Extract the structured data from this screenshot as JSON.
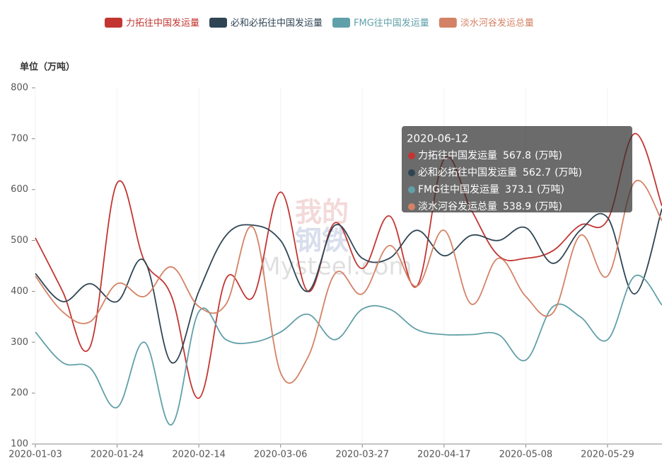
{
  "chart_data": {
    "type": "line",
    "y_label": "单位（万吨）",
    "tooltip_unit": "(万吨)",
    "tooltip_index": 23,
    "watermark": [
      "我的",
      "钢铁",
      "Mysteel.com"
    ],
    "categories": [
      "2020-01-03",
      null,
      null,
      "2020-01-24",
      null,
      null,
      "2020-02-14",
      null,
      null,
      "2020-03-06",
      null,
      null,
      "2020-03-27",
      null,
      null,
      "2020-04-17",
      null,
      null,
      "2020-05-08",
      null,
      null,
      "2020-05-29",
      null,
      "2020-06-12"
    ],
    "ylim": [
      100,
      800
    ],
    "yticks": [
      100,
      200,
      300,
      400,
      500,
      600,
      700,
      800
    ],
    "series": [
      {
        "name": "力拓往中国发运量",
        "color": "#c23531",
        "values": [
          505,
          400,
          290,
          613,
          460,
          390,
          190,
          425,
          390,
          595,
          400,
          535,
          445,
          548,
          410,
          660,
          560,
          470,
          465,
          480,
          530,
          540,
          710,
          567.8
        ]
      },
      {
        "name": "必和必拓往中国发运量",
        "color": "#2f4554",
        "values": [
          435,
          380,
          415,
          380,
          460,
          260,
          400,
          510,
          530,
          500,
          400,
          530,
          465,
          465,
          520,
          470,
          510,
          500,
          525,
          455,
          520,
          545,
          395,
          562.7
        ]
      },
      {
        "name": "FMG往中国发运量",
        "color": "#61a0a8",
        "values": [
          320,
          260,
          250,
          172,
          300,
          138,
          360,
          305,
          300,
          320,
          355,
          305,
          365,
          365,
          325,
          315,
          315,
          315,
          265,
          370,
          350,
          305,
          430,
          373.1
        ]
      },
      {
        "name": "淡水河谷发运总量",
        "color": "#d48265",
        "values": [
          430,
          360,
          340,
          415,
          390,
          448,
          370,
          375,
          525,
          240,
          270,
          435,
          395,
          490,
          410,
          520,
          375,
          465,
          390,
          358,
          510,
          430,
          615,
          538.9
        ]
      }
    ]
  }
}
